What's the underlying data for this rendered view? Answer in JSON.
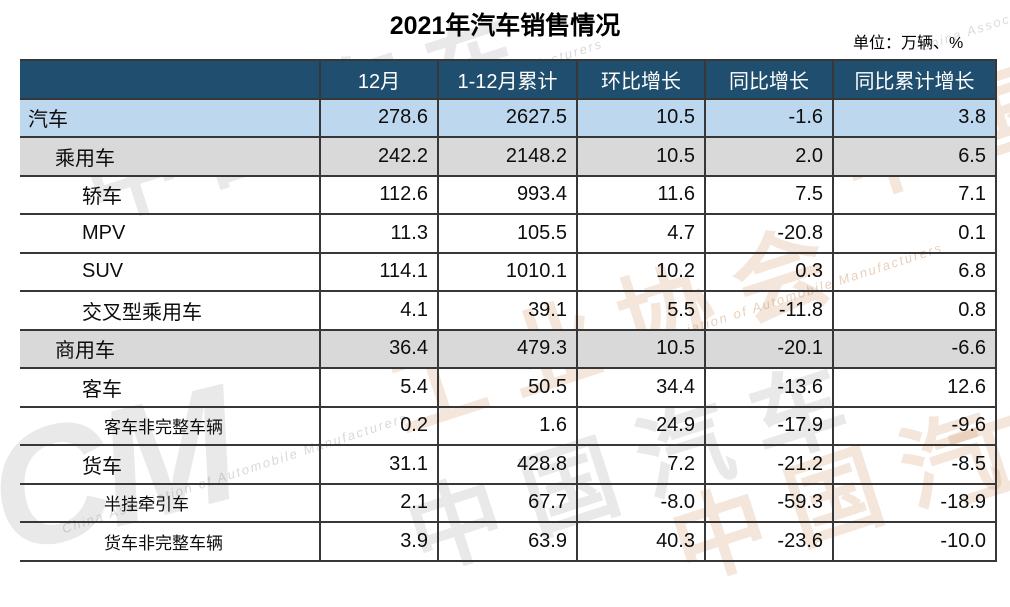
{
  "page": {
    "title": "2021年汽车销售情况",
    "unit_label": "单位：万辆、%"
  },
  "colors": {
    "header_bg": "#1F4E6E",
    "header_text": "#FFFFFF",
    "row_highlight_blue": "#BDD7EE",
    "row_highlight_gray": "#D9D9D9",
    "border": "#373737",
    "watermark_gray": "#7D7D7D",
    "watermark_tan": "#C68246"
  },
  "watermark": {
    "brand_cn_1": "中国汽车",
    "brand_cn_2": "工业协会",
    "brand_en": "China Association of Automobile Manufacturers",
    "logo_text": "CM"
  },
  "chart_data": {
    "type": "table",
    "title": "2021年汽车销售情况",
    "unit": "万辆、%",
    "columns": [
      "",
      "12月",
      "1-12月累计",
      "环比增长",
      "同比增长",
      "同比累计增长"
    ],
    "rows": [
      {
        "label": "汽车",
        "level": 0,
        "values": [
          278.6,
          2627.5,
          10.5,
          -1.6,
          3.8
        ]
      },
      {
        "label": "乘用车",
        "level": 1,
        "values": [
          242.2,
          2148.2,
          10.5,
          2.0,
          6.5
        ]
      },
      {
        "label": "轿车",
        "level": 2,
        "values": [
          112.6,
          993.4,
          11.6,
          7.5,
          7.1
        ]
      },
      {
        "label": "MPV",
        "level": 2,
        "values": [
          11.3,
          105.5,
          4.7,
          -20.8,
          0.1
        ]
      },
      {
        "label": "SUV",
        "level": 2,
        "values": [
          114.1,
          1010.1,
          10.2,
          0.3,
          6.8
        ]
      },
      {
        "label": "交叉型乘用车",
        "level": 2,
        "values": [
          4.1,
          39.1,
          5.5,
          -11.8,
          0.8
        ]
      },
      {
        "label": "商用车",
        "level": 1,
        "values": [
          36.4,
          479.3,
          10.5,
          -20.1,
          -6.6
        ]
      },
      {
        "label": "客车",
        "level": 2,
        "values": [
          5.4,
          50.5,
          34.4,
          -13.6,
          12.6
        ]
      },
      {
        "label": "客车非完整车辆",
        "level": 3,
        "values": [
          0.2,
          1.6,
          24.9,
          -17.9,
          -9.6
        ]
      },
      {
        "label": "货车",
        "level": 2,
        "values": [
          31.1,
          428.8,
          7.2,
          -21.2,
          -8.5
        ]
      },
      {
        "label": "半挂牵引车",
        "level": 3,
        "values": [
          2.1,
          67.7,
          -8.0,
          -59.3,
          -18.9
        ]
      },
      {
        "label": "货车非完整车辆",
        "level": 3,
        "values": [
          3.9,
          63.9,
          40.3,
          -23.6,
          -10.0
        ]
      }
    ]
  }
}
